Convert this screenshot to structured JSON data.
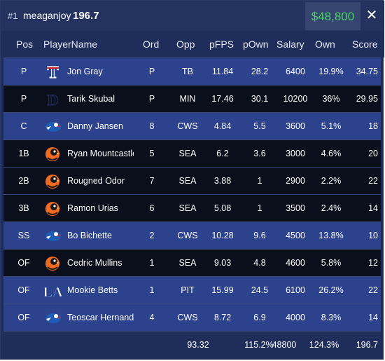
{
  "header": {
    "rank": "#1",
    "username": "meaganjoy",
    "score": "196.7",
    "salary_remaining": "$48,800",
    "close_label": "✕"
  },
  "colors": {
    "row_blue": "#2c428c",
    "row_dark": "#0b0e1b",
    "salary_green": "#4bd468"
  },
  "columns": [
    "Pos",
    "PlayerName",
    "Ord",
    "Opp",
    "pFPS",
    "pOwn",
    "Salary",
    "Own",
    "Score"
  ],
  "rows": [
    {
      "pos": "P",
      "name": "Jon Gray",
      "team_logo": "rangers-logo",
      "ord": "P",
      "opp": "TB",
      "pfps": "11.84",
      "pown": "28.2",
      "salary": "6400",
      "own": "19.9%",
      "score": "34.75",
      "style": "blue"
    },
    {
      "pos": "P",
      "name": "Tarik Skubal",
      "team_logo": "tigers-logo",
      "ord": "P",
      "opp": "MIN",
      "pfps": "17.46",
      "pown": "30.1",
      "salary": "10200",
      "own": "36%",
      "score": "29.95",
      "style": "dark"
    },
    {
      "pos": "C",
      "name": "Danny Jansen",
      "team_logo": "bluejays-logo",
      "ord": "8",
      "opp": "CWS",
      "pfps": "4.84",
      "pown": "5.5",
      "salary": "3600",
      "own": "5.1%",
      "score": "18",
      "style": "blue"
    },
    {
      "pos": "1B",
      "name": "Ryan Mountcastle",
      "team_logo": "orioles-logo",
      "ord": "5",
      "opp": "SEA",
      "pfps": "6.2",
      "pown": "3.6",
      "salary": "3000",
      "own": "4.6%",
      "score": "20",
      "style": "dark"
    },
    {
      "pos": "2B",
      "name": "Rougned Odor",
      "team_logo": "orioles-logo",
      "ord": "7",
      "opp": "SEA",
      "pfps": "3.88",
      "pown": "1",
      "salary": "2900",
      "own": "2.2%",
      "score": "22",
      "style": "dark"
    },
    {
      "pos": "3B",
      "name": "Ramon Urias",
      "team_logo": "orioles-logo",
      "ord": "6",
      "opp": "SEA",
      "pfps": "5.08",
      "pown": "1",
      "salary": "3500",
      "own": "2.4%",
      "score": "14",
      "style": "dark"
    },
    {
      "pos": "SS",
      "name": "Bo Bichette",
      "team_logo": "bluejays-logo",
      "ord": "2",
      "opp": "CWS",
      "pfps": "10.28",
      "pown": "9.6",
      "salary": "4500",
      "own": "13.8%",
      "score": "10",
      "style": "blue"
    },
    {
      "pos": "OF",
      "name": "Cedric Mullins",
      "team_logo": "orioles-logo",
      "ord": "1",
      "opp": "SEA",
      "pfps": "9.03",
      "pown": "4.8",
      "salary": "4600",
      "own": "5.8%",
      "score": "12",
      "style": "dark"
    },
    {
      "pos": "OF",
      "name": "Mookie Betts",
      "team_logo": "dodgers-logo",
      "ord": "1",
      "opp": "PIT",
      "pfps": "15.99",
      "pown": "24.5",
      "salary": "6100",
      "own": "26.2%",
      "score": "22",
      "style": "blue"
    },
    {
      "pos": "OF",
      "name": "Teoscar Hernandez",
      "team_logo": "bluejays-logo",
      "ord": "4",
      "opp": "CWS",
      "pfps": "8.72",
      "pown": "6.9",
      "salary": "4000",
      "own": "8.3%",
      "score": "14",
      "style": "blue"
    }
  ],
  "totals": {
    "pfps": "93.32",
    "pown": "115.2%",
    "salary": "48800",
    "own": "124.3%",
    "score": "196.7"
  }
}
